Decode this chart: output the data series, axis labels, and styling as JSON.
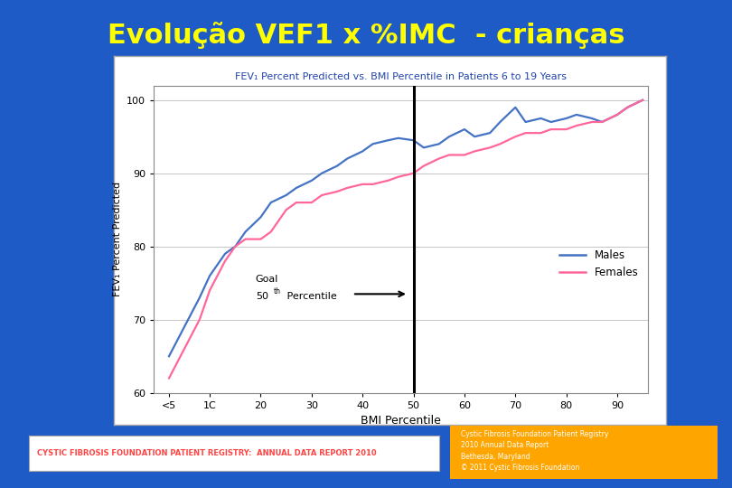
{
  "title": "Evolução VEF1 x %IMC  - crianças",
  "title_color": "#FFFF00",
  "title_fontsize": 22,
  "bg_color": "#1E5BC6",
  "chart_title": "FEV₁ Percent Predicted vs. BMI Percentile in Patients 6 to 19 Years",
  "chart_title_color": "#2244AA",
  "xlabel": "BMI Percentile",
  "ylabel": "FEV₁ Percent Predicted",
  "ylim": [
    60,
    102
  ],
  "yticks": [
    60,
    70,
    80,
    90,
    100
  ],
  "xtick_labels": [
    "<5",
    "1C",
    "20",
    "30",
    "40",
    "50",
    "60",
    "70",
    "80",
    "90"
  ],
  "xtick_positions": [
    2,
    10,
    20,
    30,
    40,
    50,
    60,
    70,
    80,
    90
  ],
  "vline_x": 50,
  "males_color": "#4472C4",
  "females_color": "#FF6699",
  "bottom_text": "CYSTIC FIBROSIS FOUNDATION PATIENT REGISTRY:  ANNUAL DATA REPORT 2010",
  "bottom_text_color": "#FF4444",
  "box_color": "#FFA500",
  "box_text": "Cystic Fibrosis Foundation Patient Registry\n2010 Annual Data Report\nBethesda, Maryland\n© 2011 Cystic Fibrosis Foundation",
  "box_text_color": "#FFFFFF",
  "chart_bg": "#F0F0F0",
  "chart_border": "#CCCCCC",
  "males_x": [
    2,
    5,
    8,
    10,
    13,
    15,
    17,
    20,
    22,
    25,
    27,
    30,
    32,
    35,
    37,
    40,
    42,
    45,
    47,
    50,
    52,
    55,
    57,
    60,
    62,
    65,
    67,
    70,
    72,
    75,
    77,
    80,
    82,
    85,
    87,
    90,
    92,
    95
  ],
  "males_y": [
    65,
    69,
    73,
    76,
    79,
    80,
    82,
    84,
    86,
    87,
    88,
    89,
    90,
    91,
    92,
    93,
    94,
    94.5,
    94.8,
    94.5,
    93.5,
    94,
    95,
    96,
    95,
    95.5,
    97,
    99,
    97,
    97.5,
    97,
    97.5,
    98,
    97.5,
    97,
    98,
    99,
    100
  ],
  "females_x": [
    2,
    5,
    8,
    10,
    13,
    15,
    17,
    20,
    22,
    25,
    27,
    30,
    32,
    35,
    37,
    40,
    42,
    45,
    47,
    50,
    52,
    55,
    57,
    60,
    62,
    65,
    67,
    70,
    72,
    75,
    77,
    80,
    82,
    85,
    87,
    90,
    92,
    95
  ],
  "females_y": [
    62,
    66,
    70,
    74,
    78,
    80,
    81,
    81,
    82,
    85,
    86,
    86,
    87,
    87.5,
    88,
    88.5,
    88.5,
    89,
    89.5,
    90,
    91,
    92,
    92.5,
    92.5,
    93,
    93.5,
    94,
    95,
    95.5,
    95.5,
    96,
    96,
    96.5,
    97,
    97,
    98,
    99,
    100
  ]
}
